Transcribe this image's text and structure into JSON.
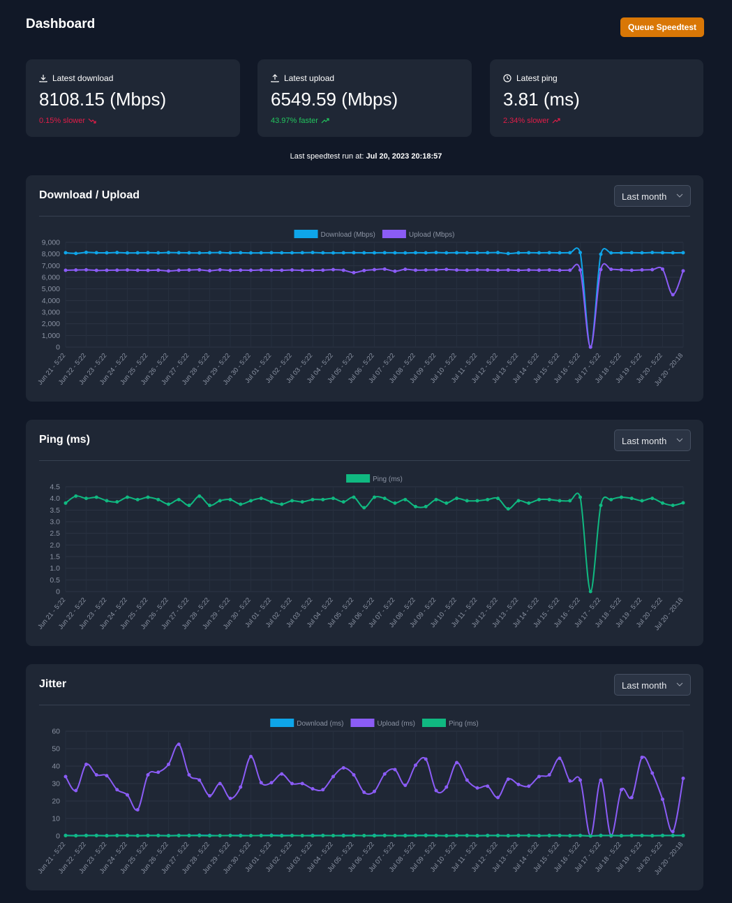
{
  "header": {
    "title": "Dashboard",
    "button": "Queue Speedtest"
  },
  "stats": [
    {
      "label": "Latest download",
      "value": "8108.15 (Mbps)",
      "change": "0.15% slower",
      "color": "#e11d48"
    },
    {
      "label": "Latest upload",
      "value": "6549.59 (Mbps)",
      "change": "43.97% faster",
      "color": "#22c55e"
    },
    {
      "label": "Latest ping",
      "value": "3.81 (ms)",
      "change": "2.34% slower",
      "color": "#e11d48"
    }
  ],
  "last_run": {
    "label": "Last speedtest run at:",
    "time": "Jul 20, 2023 20:18:57"
  },
  "chart_data": [
    {
      "type": "line",
      "title": "Download / Upload",
      "filter": "Last month",
      "categories": [
        "Jun 21 - 5:22",
        null,
        "Jun 22 - 5:22",
        null,
        "Jun 23 - 5:22",
        null,
        "Jun 24 - 5:22",
        null,
        "Jun 25 - 5:22",
        null,
        "Jun 26 - 5:22",
        null,
        "Jun 27 - 5:22",
        null,
        "Jun 28 - 5:22",
        null,
        "Jun 29 - 5:22",
        null,
        "Jun 30 - 5:22",
        null,
        "Jul 01 - 5:22",
        null,
        "Jul 02 - 5:22",
        null,
        "Jul 03 - 5:22",
        null,
        "Jul 04 - 5:22",
        null,
        "Jul 05 - 5:22",
        null,
        "Jul 06 - 5:22",
        null,
        "Jul 07 - 5:22",
        null,
        "Jul 08 - 5:22",
        null,
        "Jul 09 - 5:22",
        null,
        "Jul 10 - 5:22",
        null,
        "Jul 11 - 5:22",
        null,
        "Jul 12 - 5:22",
        null,
        "Jul 13 - 5:22",
        null,
        "Jul 14 - 5:22",
        null,
        "Jul 15 - 5:22",
        null,
        "Jul 16 - 5:22",
        null,
        "Jul 17 - 5:22",
        null,
        "Jul 18 - 5:22",
        null,
        "Jul 19 - 5:22",
        null,
        "Jul 20 - 5:22",
        null,
        "Jul 20 - 20:18"
      ],
      "series": [
        {
          "name": "Download (Mbps)",
          "color": "#0ea5e9",
          "values": [
            8108,
            8050,
            8140,
            8110,
            8100,
            8120,
            8090,
            8100,
            8110,
            8100,
            8120,
            8110,
            8100,
            8090,
            8110,
            8120,
            8100,
            8110,
            8090,
            8100,
            8110,
            8100,
            8100,
            8110,
            8120,
            8100,
            8090,
            8100,
            8110,
            8100,
            8100,
            8110,
            8100,
            8090,
            8110,
            8100,
            8120,
            8100,
            8110,
            8100,
            8100,
            8110,
            8120,
            8040,
            8100,
            8110,
            8100,
            8110,
            8100,
            8110,
            8120,
            0,
            7980,
            8090,
            8100,
            8110,
            8100,
            8120,
            8110,
            8100,
            8108.15
          ]
        },
        {
          "name": "Upload (Mbps)",
          "color": "#8b5cf6",
          "values": [
            6600,
            6620,
            6640,
            6590,
            6600,
            6610,
            6620,
            6600,
            6590,
            6610,
            6540,
            6600,
            6620,
            6640,
            6560,
            6640,
            6590,
            6610,
            6600,
            6620,
            6610,
            6600,
            6620,
            6590,
            6600,
            6610,
            6650,
            6600,
            6400,
            6580,
            6650,
            6700,
            6520,
            6680,
            6610,
            6620,
            6640,
            6670,
            6620,
            6610,
            6630,
            6620,
            6610,
            6620,
            6600,
            6620,
            6610,
            6620,
            6600,
            6610,
            6620,
            0,
            6660,
            6680,
            6640,
            6600,
            6630,
            6650,
            6700,
            4500,
            6549.59
          ]
        }
      ],
      "ylim": [
        0,
        9000
      ],
      "yticks": [
        0,
        {
          "value": 1000,
          "label": "1,000"
        },
        {
          "value": 2000,
          "label": "2,000"
        },
        {
          "value": 3000,
          "label": "3,000"
        },
        {
          "value": 4000,
          "label": "4,000"
        },
        {
          "value": 5000,
          "label": "5,000"
        },
        {
          "value": 6000,
          "label": "6,000"
        },
        {
          "value": 7000,
          "label": "7,000"
        },
        {
          "value": 8000,
          "label": "8,000"
        },
        {
          "value": 9000,
          "label": "9,000"
        }
      ],
      "grid": true
    },
    {
      "type": "line",
      "title": "Ping (ms)",
      "filter": "Last month",
      "categories": [
        "Jun 21 - 5:22",
        null,
        "Jun 22 - 5:22",
        null,
        "Jun 23 - 5:22",
        null,
        "Jun 24 - 5:22",
        null,
        "Jun 25 - 5:22",
        null,
        "Jun 26 - 5:22",
        null,
        "Jun 27 - 5:22",
        null,
        "Jun 28 - 5:22",
        null,
        "Jun 29 - 5:22",
        null,
        "Jun 30 - 5:22",
        null,
        "Jul 01 - 5:22",
        null,
        "Jul 02 - 5:22",
        null,
        "Jul 03 - 5:22",
        null,
        "Jul 04 - 5:22",
        null,
        "Jul 05 - 5:22",
        null,
        "Jul 06 - 5:22",
        null,
        "Jul 07 - 5:22",
        null,
        "Jul 08 - 5:22",
        null,
        "Jul 09 - 5:22",
        null,
        "Jul 10 - 5:22",
        null,
        "Jul 11 - 5:22",
        null,
        "Jul 12 - 5:22",
        null,
        "Jul 13 - 5:22",
        null,
        "Jul 14 - 5:22",
        null,
        "Jul 15 - 5:22",
        null,
        "Jul 16 - 5:22",
        null,
        "Jul 17 - 5:22",
        null,
        "Jul 18 - 5:22",
        null,
        "Jul 19 - 5:22",
        null,
        "Jul 20 - 5:22",
        null,
        "Jul 20 - 20:18"
      ],
      "series": [
        {
          "name": "Ping (ms)",
          "color": "#10b981",
          "values": [
            3.8,
            4.1,
            4.0,
            4.05,
            3.9,
            3.85,
            4.05,
            3.95,
            4.05,
            3.95,
            3.75,
            3.95,
            3.7,
            4.1,
            3.7,
            3.9,
            3.95,
            3.75,
            3.9,
            4.0,
            3.85,
            3.75,
            3.9,
            3.85,
            3.95,
            3.95,
            4.0,
            3.85,
            4.05,
            3.6,
            4.05,
            4.0,
            3.8,
            3.95,
            3.65,
            3.65,
            3.95,
            3.8,
            4.0,
            3.9,
            3.9,
            3.95,
            4.0,
            3.55,
            3.9,
            3.8,
            3.95,
            3.95,
            3.9,
            3.9,
            4.05,
            0,
            3.7,
            3.95,
            4.05,
            4.0,
            3.9,
            4.0,
            3.8,
            3.7,
            3.81
          ]
        }
      ],
      "ylim": [
        0,
        4.5
      ],
      "yticks": [
        0,
        0.5,
        {
          "value": 1,
          "label": "1.0"
        },
        1.5,
        {
          "value": 2,
          "label": "2.0"
        },
        2.5,
        {
          "value": 3,
          "label": "3.0"
        },
        3.5,
        {
          "value": 4,
          "label": "4.0"
        },
        4.5
      ],
      "grid": true
    },
    {
      "type": "line",
      "title": "Jitter",
      "filter": "Last month",
      "categories": [
        "Jun 21 - 5:22",
        null,
        "Jun 22 - 5:22",
        null,
        "Jun 23 - 5:22",
        null,
        "Jun 24 - 5:22",
        null,
        "Jun 25 - 5:22",
        null,
        "Jun 26 - 5:22",
        null,
        "Jun 27 - 5:22",
        null,
        "Jun 28 - 5:22",
        null,
        "Jun 29 - 5:22",
        null,
        "Jun 30 - 5:22",
        null,
        "Jul 01 - 5:22",
        null,
        "Jul 02 - 5:22",
        null,
        "Jul 03 - 5:22",
        null,
        "Jul 04 - 5:22",
        null,
        "Jul 05 - 5:22",
        null,
        "Jul 06 - 5:22",
        null,
        "Jul 07 - 5:22",
        null,
        "Jul 08 - 5:22",
        null,
        "Jul 09 - 5:22",
        null,
        "Jul 10 - 5:22",
        null,
        "Jul 11 - 5:22",
        null,
        "Jul 12 - 5:22",
        null,
        "Jul 13 - 5:22",
        null,
        "Jul 14 - 5:22",
        null,
        "Jul 15 - 5:22",
        null,
        "Jul 16 - 5:22",
        null,
        "Jul 17 - 5:22",
        null,
        "Jul 18 - 5:22",
        null,
        "Jul 19 - 5:22",
        null,
        "Jul 20 - 5:22",
        null,
        "Jul 20 - 20:18"
      ],
      "series": [
        {
          "name": "Download (ms)",
          "color": "#0ea5e9",
          "values": [
            0.3,
            0.2,
            0.3,
            0.3,
            0.2,
            0.3,
            0.3,
            0.2,
            0.3,
            0.3,
            0.2,
            0.3,
            0.3,
            0.4,
            0.3,
            0.2,
            0.3,
            0.3,
            0.2,
            0.3,
            0.4,
            0.3,
            0.3,
            0.2,
            0.3,
            0.3,
            0.2,
            0.3,
            0.3,
            0.2,
            0.3,
            0.3,
            0.2,
            0.3,
            0.3,
            0.4,
            0.3,
            0.2,
            0.3,
            0.3,
            0.2,
            0.3,
            0.3,
            0.2,
            0.3,
            0.3,
            0.2,
            0.3,
            0.3,
            0.2,
            0.3,
            0,
            0.3,
            0.3,
            0.2,
            0.3,
            0.3,
            0.2,
            0.3,
            0.3,
            0.3
          ]
        },
        {
          "name": "Upload (ms)",
          "color": "#8b5cf6",
          "values": [
            34,
            26,
            41,
            35,
            34.5,
            26.5,
            23.5,
            15,
            35,
            36.5,
            41,
            52.5,
            35,
            32,
            23,
            30,
            21.5,
            28,
            45.5,
            30.5,
            30.5,
            35.5,
            30,
            30,
            27,
            26.5,
            34,
            39,
            35,
            25,
            25.5,
            35.5,
            38,
            29,
            40.5,
            44,
            26,
            28,
            42,
            32,
            27.5,
            28.5,
            22,
            32.5,
            29.5,
            28.5,
            34,
            35,
            44.5,
            31.5,
            32,
            0,
            32,
            0,
            26.5,
            22,
            45,
            36,
            21,
            2.5,
            33
          ]
        },
        {
          "name": "Ping (ms)",
          "color": "#10b981",
          "values": [
            0.2,
            0.1,
            0.2,
            0.2,
            0.1,
            0.2,
            0.2,
            0.1,
            0.2,
            0.2,
            0.1,
            0.2,
            0.2,
            0.2,
            0.1,
            0.2,
            0.2,
            0.1,
            0.2,
            0.2,
            0.2,
            0.1,
            0.2,
            0.2,
            0.1,
            0.2,
            0.2,
            0.1,
            0.2,
            0.2,
            0.1,
            0.2,
            0.2,
            0.1,
            0.2,
            0.2,
            0.2,
            0.1,
            0.2,
            0.2,
            0.1,
            0.2,
            0.2,
            0.1,
            0.2,
            0.2,
            0.1,
            0.2,
            0.2,
            0.1,
            0.2,
            0,
            0.2,
            0.2,
            0.1,
            0.2,
            0.2,
            0.1,
            0.2,
            0.2,
            0.2
          ]
        }
      ],
      "ylim": [
        0,
        60
      ],
      "yticks": [
        0,
        10,
        20,
        30,
        40,
        50,
        60
      ],
      "grid": true
    }
  ]
}
